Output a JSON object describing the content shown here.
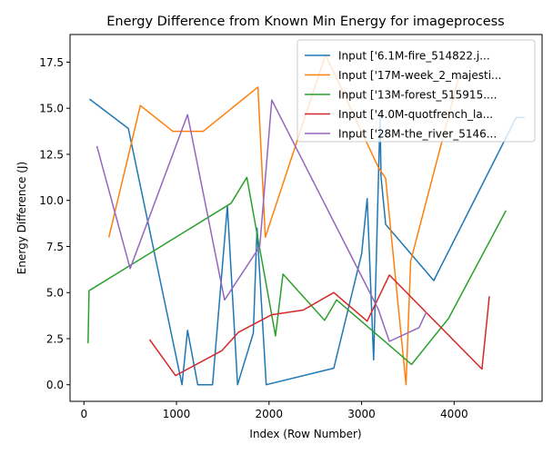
{
  "chart_data": {
    "type": "line",
    "title": "Energy Difference from Known Min Energy for imageprocess",
    "xlabel": "Index (Row Number)",
    "ylabel": "Energy Difference (J)",
    "xlim": [
      -150,
      4950
    ],
    "ylim": [
      -0.9,
      19.0
    ],
    "xticks": [
      0,
      1000,
      2000,
      3000,
      4000
    ],
    "xtick_labels": [
      "0",
      "1000",
      "2000",
      "3000",
      "4000"
    ],
    "yticks": [
      0.0,
      2.5,
      5.0,
      7.5,
      10.0,
      12.5,
      15.0,
      17.5
    ],
    "ytick_labels": [
      "0.0",
      "2.5",
      "5.0",
      "7.5",
      "10.0",
      "12.5",
      "15.0",
      "17.5"
    ],
    "grid": false,
    "legend_position": "top-right",
    "series": [
      {
        "name": "Input ['6.1M-fire_514822.j...",
        "color": "#1f77b4",
        "x": [
          60,
          480,
          1060,
          1120,
          1230,
          1390,
          1550,
          1660,
          1830,
          1870,
          1970,
          2700,
          3000,
          3060,
          3130,
          3200,
          3210,
          3260,
          3780,
          4670,
          4760
        ],
        "y": [
          15.5,
          13.9,
          0.0,
          2.95,
          0.0,
          0.0,
          9.7,
          0.0,
          2.8,
          8.5,
          0.0,
          0.9,
          7.1,
          10.1,
          1.35,
          14.6,
          11.3,
          8.7,
          5.65,
          14.5,
          14.5
        ]
      },
      {
        "name": "Input ['17M-week_2_majesti...",
        "color": "#ff7f0e",
        "x": [
          270,
          610,
          960,
          1290,
          1880,
          1960,
          2610,
          3180,
          3260,
          3480,
          3530,
          4050
        ],
        "y": [
          8.0,
          15.15,
          13.75,
          13.75,
          16.15,
          8.0,
          17.9,
          11.8,
          11.2,
          0.0,
          6.7,
          16.7
        ]
      },
      {
        "name": "Input ['13M-forest_515915....",
        "color": "#2ca02c",
        "x": [
          45,
          55,
          1590,
          1760,
          2070,
          2150,
          2600,
          2730,
          3540,
          3940,
          4560
        ],
        "y": [
          2.25,
          5.1,
          9.85,
          11.25,
          2.65,
          6.0,
          3.5,
          4.6,
          1.1,
          3.6,
          9.45
        ]
      },
      {
        "name": "Input ['4.0M-quotfrench_la...",
        "color": "#d62728",
        "x": [
          710,
          990,
          1490,
          1670,
          2030,
          2370,
          2700,
          3060,
          3300,
          4300,
          4380
        ],
        "y": [
          2.45,
          0.5,
          1.85,
          2.85,
          3.8,
          4.05,
          5.0,
          3.45,
          5.95,
          0.85,
          4.8
        ]
      },
      {
        "name": "Input ['28M-the_river_5146...",
        "color": "#9467bd",
        "x": [
          140,
          500,
          1120,
          1520,
          1900,
          2030,
          3180,
          3300,
          3620,
          3700
        ],
        "y": [
          12.95,
          6.3,
          14.65,
          4.6,
          7.5,
          15.45,
          4.1,
          2.35,
          3.1,
          3.95
        ]
      }
    ]
  }
}
